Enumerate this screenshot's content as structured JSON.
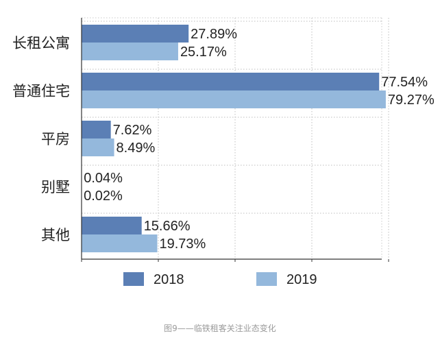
{
  "chart_data": {
    "type": "bar",
    "orientation": "horizontal",
    "categories": [
      "长租公寓",
      "普通住宅",
      "平房",
      "别墅",
      "其他"
    ],
    "series": [
      {
        "name": "2018",
        "color": "#5b7fb5",
        "values": [
          27.89,
          77.54,
          7.62,
          0.04,
          15.66
        ],
        "labels": [
          "27.89%",
          "77.54%",
          "7.62%",
          "0.04%",
          "15.66%"
        ]
      },
      {
        "name": "2019",
        "color": "#94b8dc",
        "values": [
          25.17,
          79.27,
          8.49,
          0.02,
          19.73
        ],
        "labels": [
          "25.17%",
          "79.27%",
          "8.49%",
          "0.02%",
          "19.73%"
        ]
      }
    ],
    "xlim": [
      0,
      80
    ],
    "grid": true,
    "legend_position": "bottom",
    "caption": "图9——临铁租客关注业态变化"
  }
}
